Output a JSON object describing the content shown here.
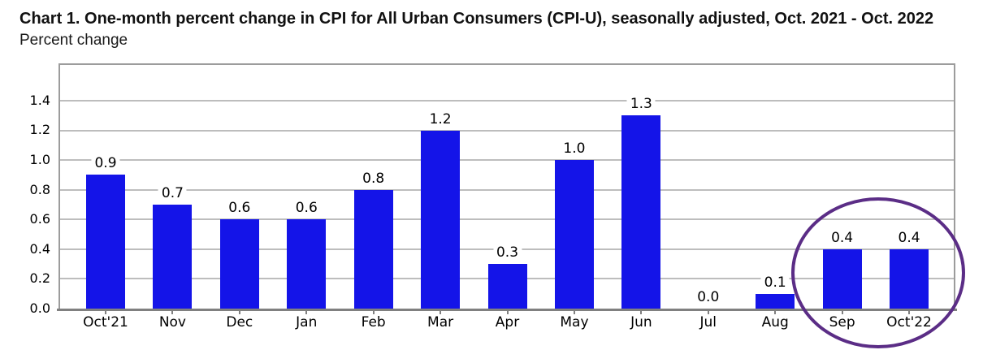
{
  "chart_data": {
    "type": "bar",
    "title": "Chart 1. One-month percent change in CPI for All Urban Consumers (CPI-U), seasonally adjusted, Oct. 2021 - Oct. 2022",
    "ylabel": "Percent change",
    "xlabel": "",
    "categories": [
      "Oct'21",
      "Nov",
      "Dec",
      "Jan",
      "Feb",
      "Mar",
      "Apr",
      "May",
      "Jun",
      "Jul",
      "Aug",
      "Sep",
      "Oct'22"
    ],
    "values": [
      0.9,
      0.7,
      0.6,
      0.6,
      0.8,
      1.2,
      0.3,
      1.0,
      1.3,
      0.0,
      0.1,
      0.4,
      0.4
    ],
    "data_labels": [
      "0.9",
      "0.7",
      "0.6",
      "0.6",
      "0.8",
      "1.2",
      "0.3",
      "1.0",
      "1.3",
      "0.0",
      "0.1",
      "0.4",
      "0.4"
    ],
    "yticks": [
      0.0,
      0.2,
      0.4,
      0.6,
      0.8,
      1.0,
      1.2,
      1.4
    ],
    "ylim": [
      0,
      1.64
    ],
    "grid": "horizontal",
    "legend": "none",
    "bar_color": "#1414E8",
    "gridline_color": "#BDBDBD",
    "axis_color": "#808080",
    "annotation": {
      "shape": "ellipse",
      "highlights": [
        "Sep",
        "Oct'22"
      ],
      "color": "#5B2D86"
    }
  }
}
